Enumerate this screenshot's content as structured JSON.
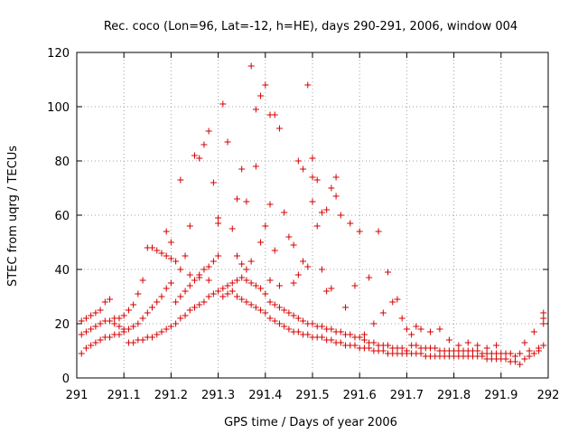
{
  "chart_data": {
    "type": "scatter",
    "title": "Rec. coco (Lon=96, Lat=-12, h=HE), days 290-291, 2006, window 004",
    "xlabel": "GPS time / Days of year 2006",
    "ylabel": "STEC from uqrg / TECUs",
    "xlim": [
      291,
      292
    ],
    "ylim": [
      0,
      120
    ],
    "xticks": [
      "291",
      "291.1",
      "291.2",
      "291.3",
      "291.4",
      "291.5",
      "291.6",
      "291.7",
      "291.8",
      "291.9",
      "292"
    ],
    "yticks": [
      "0",
      "20",
      "40",
      "60",
      "80",
      "100",
      "120"
    ],
    "grid": true,
    "marker": "+",
    "color": "#d40000",
    "series": [
      {
        "points": [
          [
            291.01,
            9
          ],
          [
            291.02,
            11
          ],
          [
            291.03,
            12
          ],
          [
            291.04,
            13
          ],
          [
            291.05,
            14
          ],
          [
            291.06,
            15
          ],
          [
            291.07,
            15
          ],
          [
            291.08,
            16
          ],
          [
            291.09,
            16
          ],
          [
            291.1,
            17
          ],
          [
            291.01,
            16
          ],
          [
            291.02,
            17
          ],
          [
            291.03,
            18
          ],
          [
            291.04,
            19
          ],
          [
            291.05,
            20
          ],
          [
            291.06,
            21
          ],
          [
            291.07,
            21
          ],
          [
            291.08,
            22
          ],
          [
            291.09,
            22
          ],
          [
            291.1,
            23
          ],
          [
            291.01,
            21
          ],
          [
            291.02,
            22
          ],
          [
            291.03,
            23
          ],
          [
            291.04,
            24
          ],
          [
            291.05,
            25
          ],
          [
            291.06,
            28
          ],
          [
            291.07,
            29
          ],
          [
            291.08,
            20
          ],
          [
            291.09,
            19
          ],
          [
            291.1,
            18
          ],
          [
            291.11,
            18
          ],
          [
            291.12,
            19
          ],
          [
            291.13,
            20
          ],
          [
            291.14,
            22
          ],
          [
            291.15,
            24
          ],
          [
            291.16,
            26
          ],
          [
            291.17,
            28
          ],
          [
            291.18,
            30
          ],
          [
            291.19,
            33
          ],
          [
            291.2,
            35
          ],
          [
            291.11,
            13
          ],
          [
            291.12,
            13
          ],
          [
            291.13,
            14
          ],
          [
            291.14,
            14
          ],
          [
            291.15,
            15
          ],
          [
            291.16,
            15
          ],
          [
            291.17,
            16
          ],
          [
            291.18,
            17
          ],
          [
            291.19,
            18
          ],
          [
            291.2,
            19
          ],
          [
            291.11,
            25
          ],
          [
            291.12,
            27
          ],
          [
            291.13,
            31
          ],
          [
            291.14,
            36
          ],
          [
            291.15,
            48
          ],
          [
            291.16,
            48
          ],
          [
            291.17,
            47
          ],
          [
            291.18,
            46
          ],
          [
            291.19,
            45
          ],
          [
            291.2,
            44
          ],
          [
            291.21,
            20
          ],
          [
            291.22,
            22
          ],
          [
            291.23,
            23
          ],
          [
            291.24,
            25
          ],
          [
            291.25,
            26
          ],
          [
            291.26,
            27
          ],
          [
            291.27,
            28
          ],
          [
            291.28,
            30
          ],
          [
            291.29,
            31
          ],
          [
            291.3,
            32
          ],
          [
            291.21,
            28
          ],
          [
            291.22,
            30
          ],
          [
            291.23,
            32
          ],
          [
            291.24,
            34
          ],
          [
            291.25,
            36
          ],
          [
            291.26,
            38
          ],
          [
            291.27,
            40
          ],
          [
            291.28,
            41
          ],
          [
            291.29,
            43
          ],
          [
            291.3,
            45
          ],
          [
            291.21,
            43
          ],
          [
            291.22,
            73
          ],
          [
            291.23,
            45
          ],
          [
            291.24,
            56
          ],
          [
            291.25,
            82
          ],
          [
            291.26,
            81
          ],
          [
            291.27,
            86
          ],
          [
            291.28,
            91
          ],
          [
            291.29,
            72
          ],
          [
            291.3,
            59
          ],
          [
            291.19,
            54
          ],
          [
            291.2,
            50
          ],
          [
            291.22,
            40
          ],
          [
            291.24,
            38
          ],
          [
            291.26,
            37
          ],
          [
            291.28,
            36
          ],
          [
            291.3,
            57
          ],
          [
            291.31,
            101
          ],
          [
            291.32,
            87
          ],
          [
            291.33,
            55
          ],
          [
            291.31,
            33
          ],
          [
            291.32,
            34
          ],
          [
            291.33,
            35
          ],
          [
            291.34,
            36
          ],
          [
            291.35,
            37
          ],
          [
            291.36,
            36
          ],
          [
            291.37,
            35
          ],
          [
            291.38,
            34
          ],
          [
            291.39,
            33
          ],
          [
            291.4,
            31
          ],
          [
            291.31,
            30
          ],
          [
            291.32,
            31
          ],
          [
            291.33,
            32
          ],
          [
            291.34,
            30
          ],
          [
            291.35,
            29
          ],
          [
            291.36,
            28
          ],
          [
            291.37,
            27
          ],
          [
            291.38,
            26
          ],
          [
            291.39,
            25
          ],
          [
            291.4,
            24
          ],
          [
            291.34,
            66
          ],
          [
            291.35,
            77
          ],
          [
            291.36,
            65
          ],
          [
            291.37,
            115
          ],
          [
            291.38,
            99
          ],
          [
            291.39,
            104
          ],
          [
            291.4,
            108
          ],
          [
            291.41,
            97
          ],
          [
            291.42,
            97
          ],
          [
            291.43,
            92
          ],
          [
            291.34,
            45
          ],
          [
            291.35,
            42
          ],
          [
            291.36,
            40
          ],
          [
            291.37,
            43
          ],
          [
            291.38,
            78
          ],
          [
            291.39,
            50
          ],
          [
            291.4,
            56
          ],
          [
            291.41,
            64
          ],
          [
            291.42,
            47
          ],
          [
            291.44,
            61
          ],
          [
            291.41,
            22
          ],
          [
            291.42,
            21
          ],
          [
            291.43,
            20
          ],
          [
            291.44,
            19
          ],
          [
            291.45,
            18
          ],
          [
            291.46,
            17
          ],
          [
            291.47,
            17
          ],
          [
            291.48,
            16
          ],
          [
            291.49,
            16
          ],
          [
            291.5,
            15
          ],
          [
            291.41,
            28
          ],
          [
            291.42,
            27
          ],
          [
            291.43,
            26
          ],
          [
            291.44,
            25
          ],
          [
            291.45,
            24
          ],
          [
            291.46,
            23
          ],
          [
            291.47,
            22
          ],
          [
            291.48,
            21
          ],
          [
            291.49,
            20
          ],
          [
            291.5,
            20
          ],
          [
            291.41,
            36
          ],
          [
            291.43,
            34
          ],
          [
            291.45,
            52
          ],
          [
            291.46,
            49
          ],
          [
            291.47,
            80
          ],
          [
            291.48,
            77
          ],
          [
            291.49,
            108
          ],
          [
            291.5,
            74
          ],
          [
            291.5,
            81
          ],
          [
            291.51,
            73
          ],
          [
            291.46,
            35
          ],
          [
            291.47,
            38
          ],
          [
            291.48,
            43
          ],
          [
            291.49,
            41
          ],
          [
            291.5,
            65
          ],
          [
            291.51,
            56
          ],
          [
            291.52,
            61
          ],
          [
            291.53,
            62
          ],
          [
            291.54,
            70
          ],
          [
            291.55,
            74
          ],
          [
            291.51,
            15
          ],
          [
            291.52,
            15
          ],
          [
            291.53,
            14
          ],
          [
            291.54,
            14
          ],
          [
            291.55,
            13
          ],
          [
            291.56,
            13
          ],
          [
            291.57,
            12
          ],
          [
            291.58,
            12
          ],
          [
            291.59,
            12
          ],
          [
            291.6,
            11
          ],
          [
            291.51,
            19
          ],
          [
            291.52,
            19
          ],
          [
            291.53,
            18
          ],
          [
            291.54,
            18
          ],
          [
            291.55,
            17
          ],
          [
            291.56,
            17
          ],
          [
            291.57,
            16
          ],
          [
            291.58,
            16
          ],
          [
            291.59,
            15
          ],
          [
            291.6,
            15
          ],
          [
            291.52,
            40
          ],
          [
            291.53,
            32
          ],
          [
            291.54,
            33
          ],
          [
            291.55,
            67
          ],
          [
            291.56,
            60
          ],
          [
            291.57,
            26
          ],
          [
            291.58,
            57
          ],
          [
            291.59,
            34
          ],
          [
            291.6,
            54
          ],
          [
            291.61,
            16
          ],
          [
            291.61,
            11
          ],
          [
            291.62,
            11
          ],
          [
            291.63,
            10
          ],
          [
            291.64,
            10
          ],
          [
            291.65,
            10
          ],
          [
            291.66,
            9
          ],
          [
            291.67,
            9
          ],
          [
            291.68,
            9
          ],
          [
            291.69,
            9
          ],
          [
            291.7,
            9
          ],
          [
            291.61,
            14
          ],
          [
            291.62,
            13
          ],
          [
            291.63,
            13
          ],
          [
            291.64,
            12
          ],
          [
            291.65,
            12
          ],
          [
            291.66,
            12
          ],
          [
            291.67,
            11
          ],
          [
            291.68,
            11
          ],
          [
            291.69,
            11
          ],
          [
            291.7,
            10
          ],
          [
            291.62,
            37
          ],
          [
            291.63,
            20
          ],
          [
            291.64,
            54
          ],
          [
            291.65,
            24
          ],
          [
            291.66,
            39
          ],
          [
            291.67,
            28
          ],
          [
            291.68,
            29
          ],
          [
            291.69,
            22
          ],
          [
            291.7,
            18
          ],
          [
            291.72,
            19
          ],
          [
            291.71,
            9
          ],
          [
            291.72,
            9
          ],
          [
            291.73,
            9
          ],
          [
            291.74,
            8
          ],
          [
            291.75,
            8
          ],
          [
            291.76,
            8
          ],
          [
            291.77,
            8
          ],
          [
            291.78,
            8
          ],
          [
            291.79,
            8
          ],
          [
            291.8,
            8
          ],
          [
            291.71,
            12
          ],
          [
            291.72,
            12
          ],
          [
            291.73,
            11
          ],
          [
            291.74,
            11
          ],
          [
            291.75,
            11
          ],
          [
            291.76,
            11
          ],
          [
            291.77,
            10
          ],
          [
            291.78,
            10
          ],
          [
            291.79,
            10
          ],
          [
            291.8,
            10
          ],
          [
            291.71,
            16
          ],
          [
            291.73,
            18
          ],
          [
            291.75,
            17
          ],
          [
            291.77,
            18
          ],
          [
            291.79,
            14
          ],
          [
            291.81,
            12
          ],
          [
            291.83,
            13
          ],
          [
            291.85,
            12
          ],
          [
            291.87,
            11
          ],
          [
            291.89,
            12
          ],
          [
            291.81,
            8
          ],
          [
            291.82,
            8
          ],
          [
            291.83,
            8
          ],
          [
            291.84,
            8
          ],
          [
            291.85,
            8
          ],
          [
            291.86,
            8
          ],
          [
            291.87,
            7
          ],
          [
            291.88,
            7
          ],
          [
            291.89,
            7
          ],
          [
            291.9,
            7
          ],
          [
            291.81,
            10
          ],
          [
            291.82,
            10
          ],
          [
            291.83,
            10
          ],
          [
            291.84,
            10
          ],
          [
            291.85,
            10
          ],
          [
            291.86,
            9
          ],
          [
            291.87,
            9
          ],
          [
            291.88,
            9
          ],
          [
            291.89,
            9
          ],
          [
            291.9,
            9
          ],
          [
            291.91,
            7
          ],
          [
            291.92,
            6
          ],
          [
            291.93,
            6
          ],
          [
            291.94,
            5
          ],
          [
            291.95,
            7
          ],
          [
            291.96,
            8
          ],
          [
            291.97,
            9
          ],
          [
            291.98,
            10
          ],
          [
            291.99,
            12
          ],
          [
            291.99,
            22
          ],
          [
            291.91,
            9
          ],
          [
            291.92,
            9
          ],
          [
            291.93,
            8
          ],
          [
            291.94,
            9
          ],
          [
            291.95,
            13
          ],
          [
            291.96,
            10
          ],
          [
            291.97,
            17
          ],
          [
            291.98,
            11
          ],
          [
            291.99,
            20
          ],
          [
            291.99,
            24
          ]
        ]
      }
    ]
  }
}
